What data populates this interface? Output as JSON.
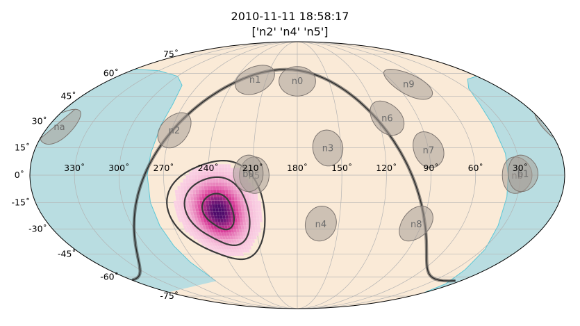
{
  "title_lines": [
    "2010-11-11 18:58:17",
    "['n2' 'n4' 'n5']"
  ],
  "colors": {
    "sky": "#faead7",
    "occulted": "#b9dde1",
    "occulted_edge": "#5bc7d6",
    "grid": "#b3b3b3",
    "detector_fill": "#a89f98",
    "detector_edge": "#7d7570",
    "contour": "#3a3a3a",
    "heat_low": "#fbd5e6",
    "heat_mid": "#d93a98",
    "heat_high": "#4d0a6b"
  },
  "chart_data": {
    "type": "heatmap",
    "projection": "mollweide",
    "title": "2010-11-11 18:58:17",
    "subtitle": "['n2' 'n4' 'n5']",
    "ra_tick_labels": [
      {
        "ra": 330,
        "label": "330˚"
      },
      {
        "ra": 300,
        "label": "300˚"
      },
      {
        "ra": 270,
        "label": "270˚"
      },
      {
        "ra": 240,
        "label": "240˚"
      },
      {
        "ra": 210,
        "label": "210˚"
      },
      {
        "ra": 180,
        "label": "180˚"
      },
      {
        "ra": 150,
        "label": "150˚"
      },
      {
        "ra": 120,
        "label": "120˚"
      },
      {
        "ra": 90,
        "label": "90˚"
      },
      {
        "ra": 60,
        "label": "60˚"
      },
      {
        "ra": 30,
        "label": "30˚"
      }
    ],
    "dec_tick_labels": [
      {
        "dec": 75,
        "label": "75˚"
      },
      {
        "dec": 60,
        "label": "60˚"
      },
      {
        "dec": 45,
        "label": "45˚"
      },
      {
        "dec": 30,
        "label": "30˚"
      },
      {
        "dec": 15,
        "label": "15˚"
      },
      {
        "dec": 0,
        "label": "0˚"
      },
      {
        "dec": -15,
        "label": "-15˚"
      },
      {
        "dec": -30,
        "label": "-30˚"
      },
      {
        "dec": -45,
        "label": "-45˚"
      },
      {
        "dec": -60,
        "label": "-60˚"
      },
      {
        "dec": -75,
        "label": "-75˚"
      }
    ],
    "grid": true,
    "localization": {
      "peak_ra": 235,
      "peak_dec": -20,
      "sigma_ra": 10,
      "sigma_dec": 9,
      "contours_sigma": [
        1,
        2,
        3
      ]
    },
    "detectors": [
      {
        "name": "n0",
        "ra": 180,
        "dec": 55
      },
      {
        "name": "n1",
        "ra": 221,
        "dec": 56
      },
      {
        "name": "n2",
        "ra": 268,
        "dec": 25
      },
      {
        "name": "n3",
        "ra": 159,
        "dec": 15
      },
      {
        "name": "n4",
        "ra": 163,
        "dec": -27
      },
      {
        "name": "n5",
        "ra": 209,
        "dec": 0
      },
      {
        "name": "n6",
        "ra": 113,
        "dec": 32
      },
      {
        "name": "n7",
        "ra": 90,
        "dec": 14
      },
      {
        "name": "n8",
        "ra": 94,
        "dec": -27
      },
      {
        "name": "n9",
        "ra": 77,
        "dec": 53
      },
      {
        "name": "na",
        "ra": 352,
        "dec": 27
      },
      {
        "name": "nb",
        "ra": 32,
        "dec": 0
      },
      {
        "name": "b0",
        "ra": 213,
        "dec": 1
      },
      {
        "name": "b1",
        "ra": 28,
        "dec": 1
      }
    ]
  }
}
